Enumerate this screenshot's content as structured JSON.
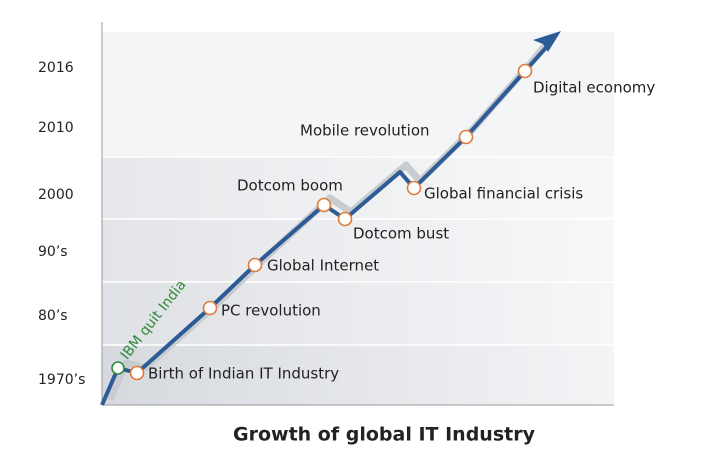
{
  "title": "Growth of global IT Industry",
  "y_labels": [
    "1970’s",
    "80’s",
    "90’s",
    "2000",
    "2010",
    "2016"
  ],
  "milestones": [
    {
      "label": "IBM quit India"
    },
    {
      "label": "Birth of Indian IT Industry"
    },
    {
      "label": "PC revolution"
    },
    {
      "label": "Global Internet"
    },
    {
      "label": "Dotcom boom"
    },
    {
      "label": "Dotcom bust"
    },
    {
      "label": "Global financial crisis"
    },
    {
      "label": "Mobile revolution"
    },
    {
      "label": "Digital economy"
    }
  ]
}
